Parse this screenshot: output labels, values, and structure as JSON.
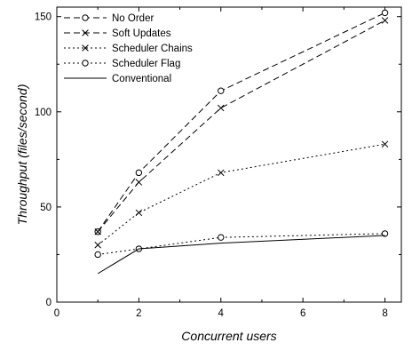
{
  "chart_data": {
    "type": "line",
    "title": "",
    "xlabel": "Concurrent users",
    "ylabel": "Throughput (files/second)",
    "xlim": [
      0,
      8.4
    ],
    "ylim": [
      0,
      155
    ],
    "xticks": [
      0,
      2,
      4,
      6,
      8
    ],
    "yticks": [
      0,
      50,
      100,
      150
    ],
    "grid": false,
    "legend_position": "top-left",
    "series": [
      {
        "name": "No Order",
        "x": [
          1,
          2,
          4,
          8
        ],
        "y": [
          37,
          68,
          111,
          152
        ],
        "dash": "dashed",
        "marker": "circle"
      },
      {
        "name": "Soft Updates",
        "x": [
          1,
          2,
          4,
          8
        ],
        "y": [
          37,
          63,
          102,
          148
        ],
        "dash": "dashed",
        "marker": "x"
      },
      {
        "name": "Scheduler Chains",
        "x": [
          1,
          2,
          4,
          8
        ],
        "y": [
          30,
          47,
          68,
          83
        ],
        "dash": "dotted",
        "marker": "x"
      },
      {
        "name": "Scheduler Flag",
        "x": [
          1,
          2,
          4,
          8
        ],
        "y": [
          25,
          28,
          34,
          36
        ],
        "dash": "dotted",
        "marker": "circle"
      },
      {
        "name": "Conventional",
        "x": [
          1,
          2,
          4,
          8
        ],
        "y": [
          15,
          28,
          31,
          35
        ],
        "dash": "solid",
        "marker": "none"
      }
    ]
  }
}
